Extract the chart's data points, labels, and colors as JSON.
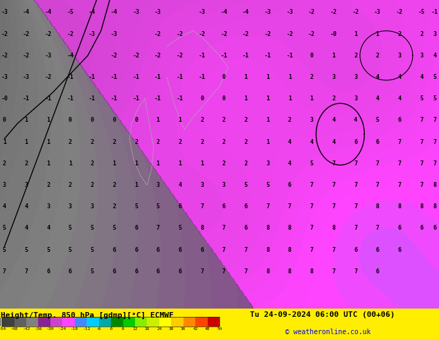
{
  "title_left": "Height/Temp. 850 hPa [gdmp][°C] ECMWF",
  "title_right": "Tu 24-09-2024 06:00 UTC (00+06)",
  "copyright": "© weatheronline.co.uk",
  "colorbar_ticks": [
    -54,
    -48,
    -42,
    -36,
    -30,
    -24,
    -18,
    -12,
    -6,
    0,
    6,
    12,
    18,
    24,
    30,
    36,
    42,
    48,
    54
  ],
  "cb_colors": [
    "#404040",
    "#606060",
    "#808080",
    "#882299",
    "#cc44cc",
    "#ff44ff",
    "#4488ff",
    "#00ccff",
    "#00aaaa",
    "#008800",
    "#00cc00",
    "#88ee00",
    "#ccee00",
    "#ffff00",
    "#ffcc00",
    "#ff8800",
    "#ff4400",
    "#cc0000"
  ],
  "map_green": "#00dd00",
  "map_yellow": "#ffee44",
  "map_orange": "#ffcc00",
  "map_lightyellow": "#ffee88",
  "slp_color": "#000000",
  "coast_color": "#aaaaaa",
  "number_color": "#000000",
  "title_color": "#000000",
  "bottom_bg": "#ffee00",
  "bottom_text_color": "#000000",
  "bottom_right_bg": "#ffee00"
}
